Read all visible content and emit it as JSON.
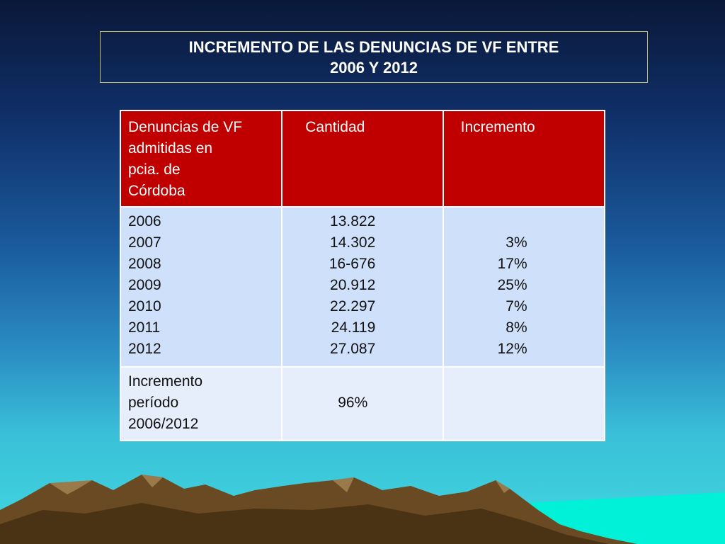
{
  "title": {
    "line1": "INCREMENTO DE LAS DENUNCIAS DE VF ENTRE",
    "line2": "2006 Y 2012"
  },
  "table": {
    "headers": [
      "Denuncias de VF admitidas en pcia. de Córdoba",
      "Cantidad",
      "Incremento"
    ],
    "header_lines": [
      "Denuncias de VF",
      "admitidas en",
      "pcia. de",
      "Córdoba"
    ],
    "years": [
      "2006",
      "2007",
      "2008",
      "2009",
      "2010",
      "2011",
      "2012"
    ],
    "quantities": [
      "13.822",
      "14.302",
      "16-676",
      "20.912",
      "22.297",
      "24.119",
      "27.087"
    ],
    "increments": [
      "",
      "3%",
      "17%",
      "25%",
      "7%",
      "8%",
      "12%"
    ],
    "footer_lines": [
      "Incremento",
      "período",
      "2006/2012"
    ],
    "footer_total": "96%"
  },
  "colors": {
    "header_bg": "#c00000",
    "body_bg": "#cfe0fb",
    "footer_bg": "#e6eefc"
  }
}
